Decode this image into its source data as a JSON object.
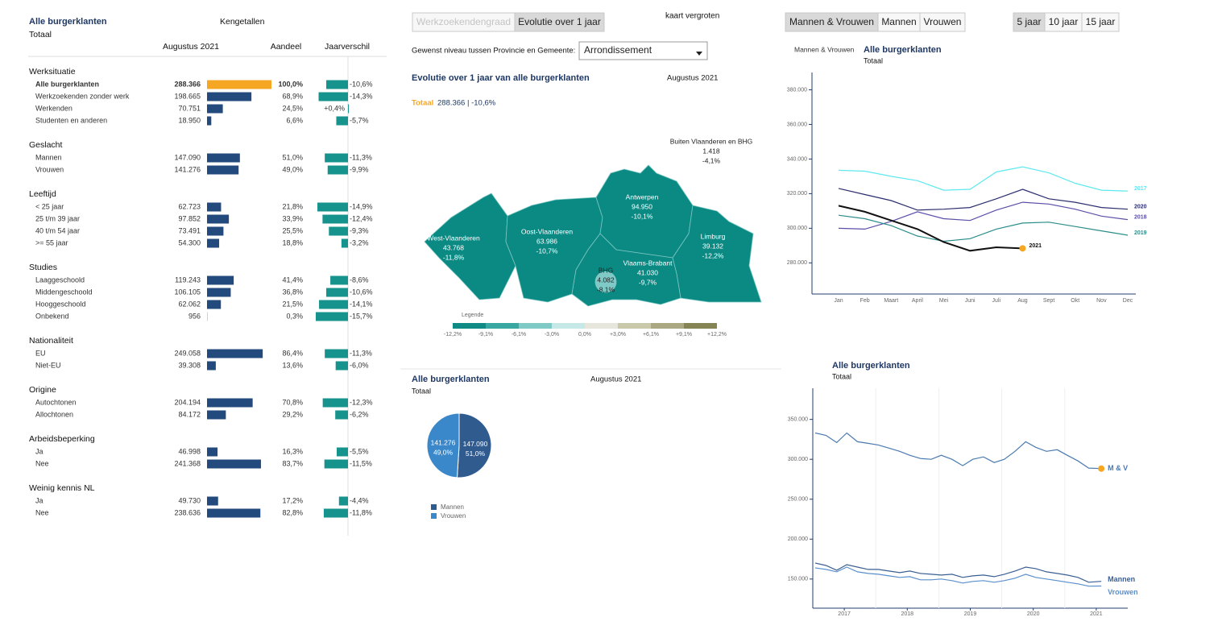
{
  "controls": {
    "view_tabs": [
      "Werkzoekendengraad",
      "Evolutie over 1 jaar"
    ],
    "view_selected": 1,
    "zoom": "kaart vergroten",
    "level_label": "Gewenst niveau tussen Provincie en Gemeente:",
    "level_value": "Arrondissement",
    "gender_tabs": [
      "Mannen & Vrouwen",
      "Mannen",
      "Vrouwen"
    ],
    "gender_selected": 0,
    "period_tabs": [
      "5 jaar",
      "10 jaar",
      "15 jaar"
    ],
    "period_selected": 0
  },
  "sidebar": {
    "title": "Alle burgerklanten",
    "subtitle": "Totaal",
    "heading": "Kengetallen",
    "columns": [
      "Augustus 2021",
      "Aandeel",
      "Jaarverschil"
    ],
    "bar_color": "#234a7c",
    "highlight_color": "#f5a623",
    "diff_color": "#17938e",
    "groups": [
      {
        "name": "Werksituatie",
        "rows": [
          {
            "label": "Alle burgerklanten",
            "value": 288366,
            "value_label": "288.366",
            "share": 100.0,
            "share_label": "100,0%",
            "diff": -10.6,
            "diff_label": "-10,6%"
          },
          {
            "label": "Werkzoekenden zonder werk",
            "value": 198665,
            "value_label": "198.665",
            "share": 68.9,
            "share_label": "68,9%",
            "diff": -14.3,
            "diff_label": "-14,3%"
          },
          {
            "label": "Werkenden",
            "value": 70751,
            "value_label": "70.751",
            "share": 24.5,
            "share_label": "24,5%",
            "diff": 0.4,
            "diff_label": "+0,4%"
          },
          {
            "label": "Studenten en anderen",
            "value": 18950,
            "value_label": "18.950",
            "share": 6.6,
            "share_label": "6,6%",
            "diff": -5.7,
            "diff_label": "-5,7%"
          }
        ]
      },
      {
        "name": "Geslacht",
        "rows": [
          {
            "label": "Mannen",
            "value": 147090,
            "value_label": "147.090",
            "share": 51.0,
            "share_label": "51,0%",
            "diff": -11.3,
            "diff_label": "-11,3%"
          },
          {
            "label": "Vrouwen",
            "value": 141276,
            "value_label": "141.276",
            "share": 49.0,
            "share_label": "49,0%",
            "diff": -9.9,
            "diff_label": "-9,9%"
          }
        ]
      },
      {
        "name": "Leeftijd",
        "rows": [
          {
            "label": "< 25 jaar",
            "value": 62723,
            "value_label": "62.723",
            "share": 21.8,
            "share_label": "21,8%",
            "diff": -14.9,
            "diff_label": "-14,9%"
          },
          {
            "label": "25 t/m 39 jaar",
            "value": 97852,
            "value_label": "97.852",
            "share": 33.9,
            "share_label": "33,9%",
            "diff": -12.4,
            "diff_label": "-12,4%"
          },
          {
            "label": "40 t/m 54 jaar",
            "value": 73491,
            "value_label": "73.491",
            "share": 25.5,
            "share_label": "25,5%",
            "diff": -9.3,
            "diff_label": "-9,3%"
          },
          {
            "label": ">= 55 jaar",
            "value": 54300,
            "value_label": "54.300",
            "share": 18.8,
            "share_label": "18,8%",
            "diff": -3.2,
            "diff_label": "-3,2%"
          }
        ]
      },
      {
        "name": "Studies",
        "rows": [
          {
            "label": "Laaggeschoold",
            "value": 119243,
            "value_label": "119.243",
            "share": 41.4,
            "share_label": "41,4%",
            "diff": -8.6,
            "diff_label": "-8,6%"
          },
          {
            "label": "Middengeschoold",
            "value": 106105,
            "value_label": "106.105",
            "share": 36.8,
            "share_label": "36,8%",
            "diff": -10.6,
            "diff_label": "-10,6%"
          },
          {
            "label": "Hooggeschoold",
            "value": 62062,
            "value_label": "62.062",
            "share": 21.5,
            "share_label": "21,5%",
            "diff": -14.1,
            "diff_label": "-14,1%"
          },
          {
            "label": "Onbekend",
            "value": 956,
            "value_label": "956",
            "share": 0.3,
            "share_label": "0,3%",
            "diff": -15.7,
            "diff_label": "-15,7%"
          }
        ]
      },
      {
        "name": "Nationaliteit",
        "rows": [
          {
            "label": "EU",
            "value": 249058,
            "value_label": "249.058",
            "share": 86.4,
            "share_label": "86,4%",
            "diff": -11.3,
            "diff_label": "-11,3%"
          },
          {
            "label": "Niet-EU",
            "value": 39308,
            "value_label": "39.308",
            "share": 13.6,
            "share_label": "13,6%",
            "diff": -6.0,
            "diff_label": "-6,0%"
          }
        ]
      },
      {
        "name": "Origine",
        "rows": [
          {
            "label": "Autochtonen",
            "value": 204194,
            "value_label": "204.194",
            "share": 70.8,
            "share_label": "70,8%",
            "diff": -12.3,
            "diff_label": "-12,3%"
          },
          {
            "label": "Allochtonen",
            "value": 84172,
            "value_label": "84.172",
            "share": 29.2,
            "share_label": "29,2%",
            "diff": -6.2,
            "diff_label": "-6,2%"
          }
        ]
      },
      {
        "name": "Arbeidsbeperking",
        "rows": [
          {
            "label": "Ja",
            "value": 46998,
            "value_label": "46.998",
            "share": 16.3,
            "share_label": "16,3%",
            "diff": -5.5,
            "diff_label": "-5,5%"
          },
          {
            "label": "Nee",
            "value": 241368,
            "value_label": "241.368",
            "share": 83.7,
            "share_label": "83,7%",
            "diff": -11.5,
            "diff_label": "-11,5%"
          }
        ]
      },
      {
        "name": "Weinig kennis NL",
        "rows": [
          {
            "label": "Ja",
            "value": 49730,
            "value_label": "49.730",
            "share": 17.2,
            "share_label": "17,2%",
            "diff": -4.4,
            "diff_label": "-4,4%"
          },
          {
            "label": "Nee",
            "value": 238636,
            "value_label": "238.636",
            "share": 82.8,
            "share_label": "82,8%",
            "diff": -11.8,
            "diff_label": "-11,8%"
          }
        ]
      }
    ]
  },
  "map": {
    "title": "Evolutie over 1 jaar van alle burgerklanten",
    "date": "Augustus 2021",
    "total_label": "Totaal",
    "total_value": "288.366 | -10,6%",
    "regions": [
      {
        "name": "West-Vlaanderen",
        "value": "43.768",
        "change": "-11,8%"
      },
      {
        "name": "Oost-Vlaanderen",
        "value": "63.986",
        "change": "-10,7%"
      },
      {
        "name": "Antwerpen",
        "value": "94.950",
        "change": "-10,1%"
      },
      {
        "name": "Limburg",
        "value": "39.132",
        "change": "-12,2%"
      },
      {
        "name": "Vlaams-Brabant",
        "value": "41.030",
        "change": "-9,7%"
      },
      {
        "name": "BHG",
        "value": "4.082",
        "change": "-8,1%"
      },
      {
        "name": "Buiten Vlaanderen en BHG",
        "value": "1.418",
        "change": "-4,1%"
      }
    ],
    "legend": {
      "title": "Legende",
      "labels": [
        "-12,2%",
        "-9,1%",
        "-6,1%",
        "-3,0%",
        "0,0%",
        "+3,0%",
        "+6,1%",
        "+9,1%",
        "+12,2%"
      ],
      "colors": [
        "#0f8a84",
        "#3aa8a2",
        "#7fcac7",
        "#c6e9e8",
        "#e6e6dc",
        "#c9c8aa",
        "#a9a882",
        "#858455"
      ]
    }
  },
  "chart_data": [
    {
      "type": "line",
      "filter_label": "Mannen & Vrouwen",
      "title": "Alle burgerklanten",
      "subtitle": "Totaal",
      "categories": [
        "Jan",
        "Feb",
        "Maart",
        "April",
        "Mei",
        "Juni",
        "Juli",
        "Aug",
        "Sept",
        "Okt",
        "Nov",
        "Dec"
      ],
      "ylim": [
        262000,
        390000
      ],
      "yticks": [
        {
          "value": 280000,
          "label": "280.000"
        },
        {
          "value": 300000,
          "label": "300.000"
        },
        {
          "value": 320000,
          "label": "320.000"
        },
        {
          "value": 340000,
          "label": "340.000"
        },
        {
          "value": 360000,
          "label": "360.000"
        },
        {
          "value": 380000,
          "label": "380.000"
        }
      ],
      "series": [
        {
          "name": "2017",
          "color": "#5ee8f0",
          "values": [
            333500,
            333000,
            330000,
            327500,
            322000,
            322500,
            332500,
            335500,
            332000,
            326000,
            322000,
            321500
          ]
        },
        {
          "name": "2020",
          "color": "#2b2d6e",
          "values": [
            323000,
            319500,
            316000,
            310500,
            311000,
            312000,
            317000,
            322500,
            317000,
            315000,
            312000,
            311000
          ]
        },
        {
          "name": "2018",
          "color": "#5a4fa8",
          "values": [
            300000,
            299500,
            304000,
            309500,
            305500,
            304500,
            310500,
            315000,
            314000,
            311000,
            307000,
            305000
          ]
        },
        {
          "name": "2019",
          "color": "#2a8d8a",
          "values": [
            307500,
            305500,
            301500,
            295500,
            292500,
            294000,
            299500,
            303000,
            303500,
            301000,
            298500,
            296000
          ]
        },
        {
          "name": "2021",
          "color": "#111111",
          "marker_color": "#f5a623",
          "values": [
            313000,
            309500,
            304500,
            299500,
            292000,
            287000,
            289000,
            288366,
            null,
            null,
            null,
            null
          ]
        }
      ]
    },
    {
      "type": "pie",
      "title": "Alle burgerklanten",
      "subtitle": "Totaal",
      "date": "Augustus 2021",
      "categories": [
        "Mannen",
        "Vrouwen"
      ],
      "values": [
        147090,
        141276
      ],
      "value_labels": [
        "147.090",
        "141.276"
      ],
      "shares": [
        51.0,
        49.0
      ],
      "share_labels": [
        "51,0%",
        "49,0%"
      ],
      "colors": [
        "#2f5b8f",
        "#3a87c9"
      ]
    },
    {
      "type": "line",
      "title": "Alle burgerklanten",
      "subtitle": "Totaal",
      "x": [
        2017.04,
        2017.21,
        2017.38,
        2017.54,
        2017.71,
        2017.88,
        2018.04,
        2018.21,
        2018.38,
        2018.54,
        2018.71,
        2018.88,
        2019.04,
        2019.21,
        2019.38,
        2019.54,
        2019.71,
        2019.88,
        2020.04,
        2020.21,
        2020.38,
        2020.54,
        2020.71,
        2020.88,
        2021.04,
        2021.21,
        2021.38,
        2021.58
      ],
      "xlim": [
        2017,
        2022
      ],
      "xticks": [
        {
          "value": 2017.5,
          "label": "2017"
        },
        {
          "value": 2018.5,
          "label": "2018"
        },
        {
          "value": 2019.5,
          "label": "2019"
        },
        {
          "value": 2020.5,
          "label": "2020"
        },
        {
          "value": 2021.5,
          "label": "2021"
        }
      ],
      "xgrid": [
        2018,
        2019,
        2020,
        2021
      ],
      "ylim": [
        113500,
        389000
      ],
      "yticks": [
        {
          "value": 150000,
          "label": "150.000"
        },
        {
          "value": 200000,
          "label": "200.000"
        },
        {
          "value": 250000,
          "label": "250.000"
        },
        {
          "value": 300000,
          "label": "300.000"
        },
        {
          "value": 350000,
          "label": "350.000"
        }
      ],
      "series": [
        {
          "name": "M & V",
          "color": "#4a7ab0",
          "marker_color": "#f5a623",
          "values": [
            333000,
            330000,
            321000,
            333000,
            322000,
            320000,
            318000,
            314000,
            310000,
            305000,
            301000,
            300000,
            305000,
            300000,
            292000,
            300000,
            303000,
            296000,
            300000,
            310000,
            322000,
            315000,
            310000,
            312000,
            305000,
            298000,
            289000,
            288366
          ]
        },
        {
          "name": "Mannen",
          "color": "#3a5f94",
          "values": [
            170000,
            167000,
            161000,
            168000,
            165000,
            162000,
            162000,
            160000,
            158000,
            160000,
            157000,
            156000,
            155000,
            156000,
            152000,
            154000,
            155000,
            153000,
            156000,
            160000,
            165000,
            163000,
            159000,
            157000,
            155000,
            152000,
            146000,
            147090
          ]
        },
        {
          "name": "Vrouwen",
          "color": "#5a8fcc",
          "values": [
            164000,
            162000,
            159000,
            165000,
            159000,
            157000,
            156000,
            154000,
            152000,
            153000,
            149000,
            149000,
            150000,
            148000,
            145000,
            147000,
            148000,
            146000,
            148000,
            151000,
            156000,
            152000,
            150000,
            148000,
            146000,
            144000,
            141000,
            141276
          ]
        }
      ]
    }
  ]
}
